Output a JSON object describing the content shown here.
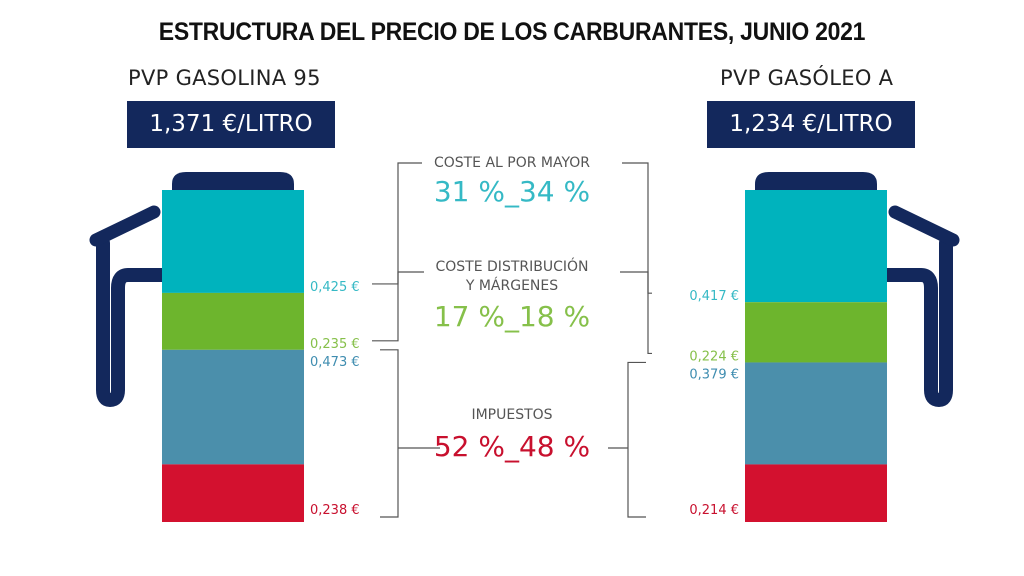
{
  "title": "ESTRUCTURA DEL PRECIO DE LOS CARBURANTES, JUNIO 2021",
  "colors": {
    "pump": "#13285c",
    "wholesale": "#00b3bd",
    "distribution": "#6db52d",
    "taxes_a": "#4b8fab",
    "taxes_b": "#d3112f",
    "wholesale_text": "#35b9c5",
    "distribution_text": "#86c04a",
    "taxes_label_text": "#555555",
    "taxes_pct_text": "#c8102e",
    "taxes_value_text": "#3f8db0"
  },
  "products": [
    {
      "name": "PVP GASOLINA 95",
      "price": "1,371 €/LITRO"
    },
    {
      "name": "PVP GASÓLEO A",
      "price": "1,234 €/LITRO"
    }
  ],
  "chart_data": {
    "type": "bar",
    "stacked": true,
    "categories": [
      "PVP GASOLINA 95",
      "PVP GASÓLEO A"
    ],
    "totals": [
      1.371,
      1.234
    ],
    "series": [
      {
        "values": [
          0.425,
          0.417
        ],
        "labels": [
          "0,425 €",
          "0,417 €"
        ],
        "color": "#00b3bd"
      },
      {
        "values": [
          0.235,
          0.224
        ],
        "labels": [
          "0,235 €",
          "0,224 €"
        ],
        "color": "#6db52d"
      },
      {
        "values": [
          0.473,
          0.379
        ],
        "labels": [
          "0,473 €",
          "0,379 €"
        ],
        "color": "#4b8fab"
      },
      {
        "values": [
          0.238,
          0.214
        ],
        "labels": [
          "0,238 €",
          "0,214 €"
        ],
        "color": "#d3112f"
      }
    ],
    "groups": [
      {
        "label": "COSTE AL POR MAYOR",
        "percent": "31 %_34 %"
      },
      {
        "label": "COSTE DISTRIBUCIÓN\nY MÁRGENES",
        "percent": "17 %_18 %"
      },
      {
        "label": "IMPUESTOS",
        "percent": "52 %_48 %"
      }
    ]
  }
}
